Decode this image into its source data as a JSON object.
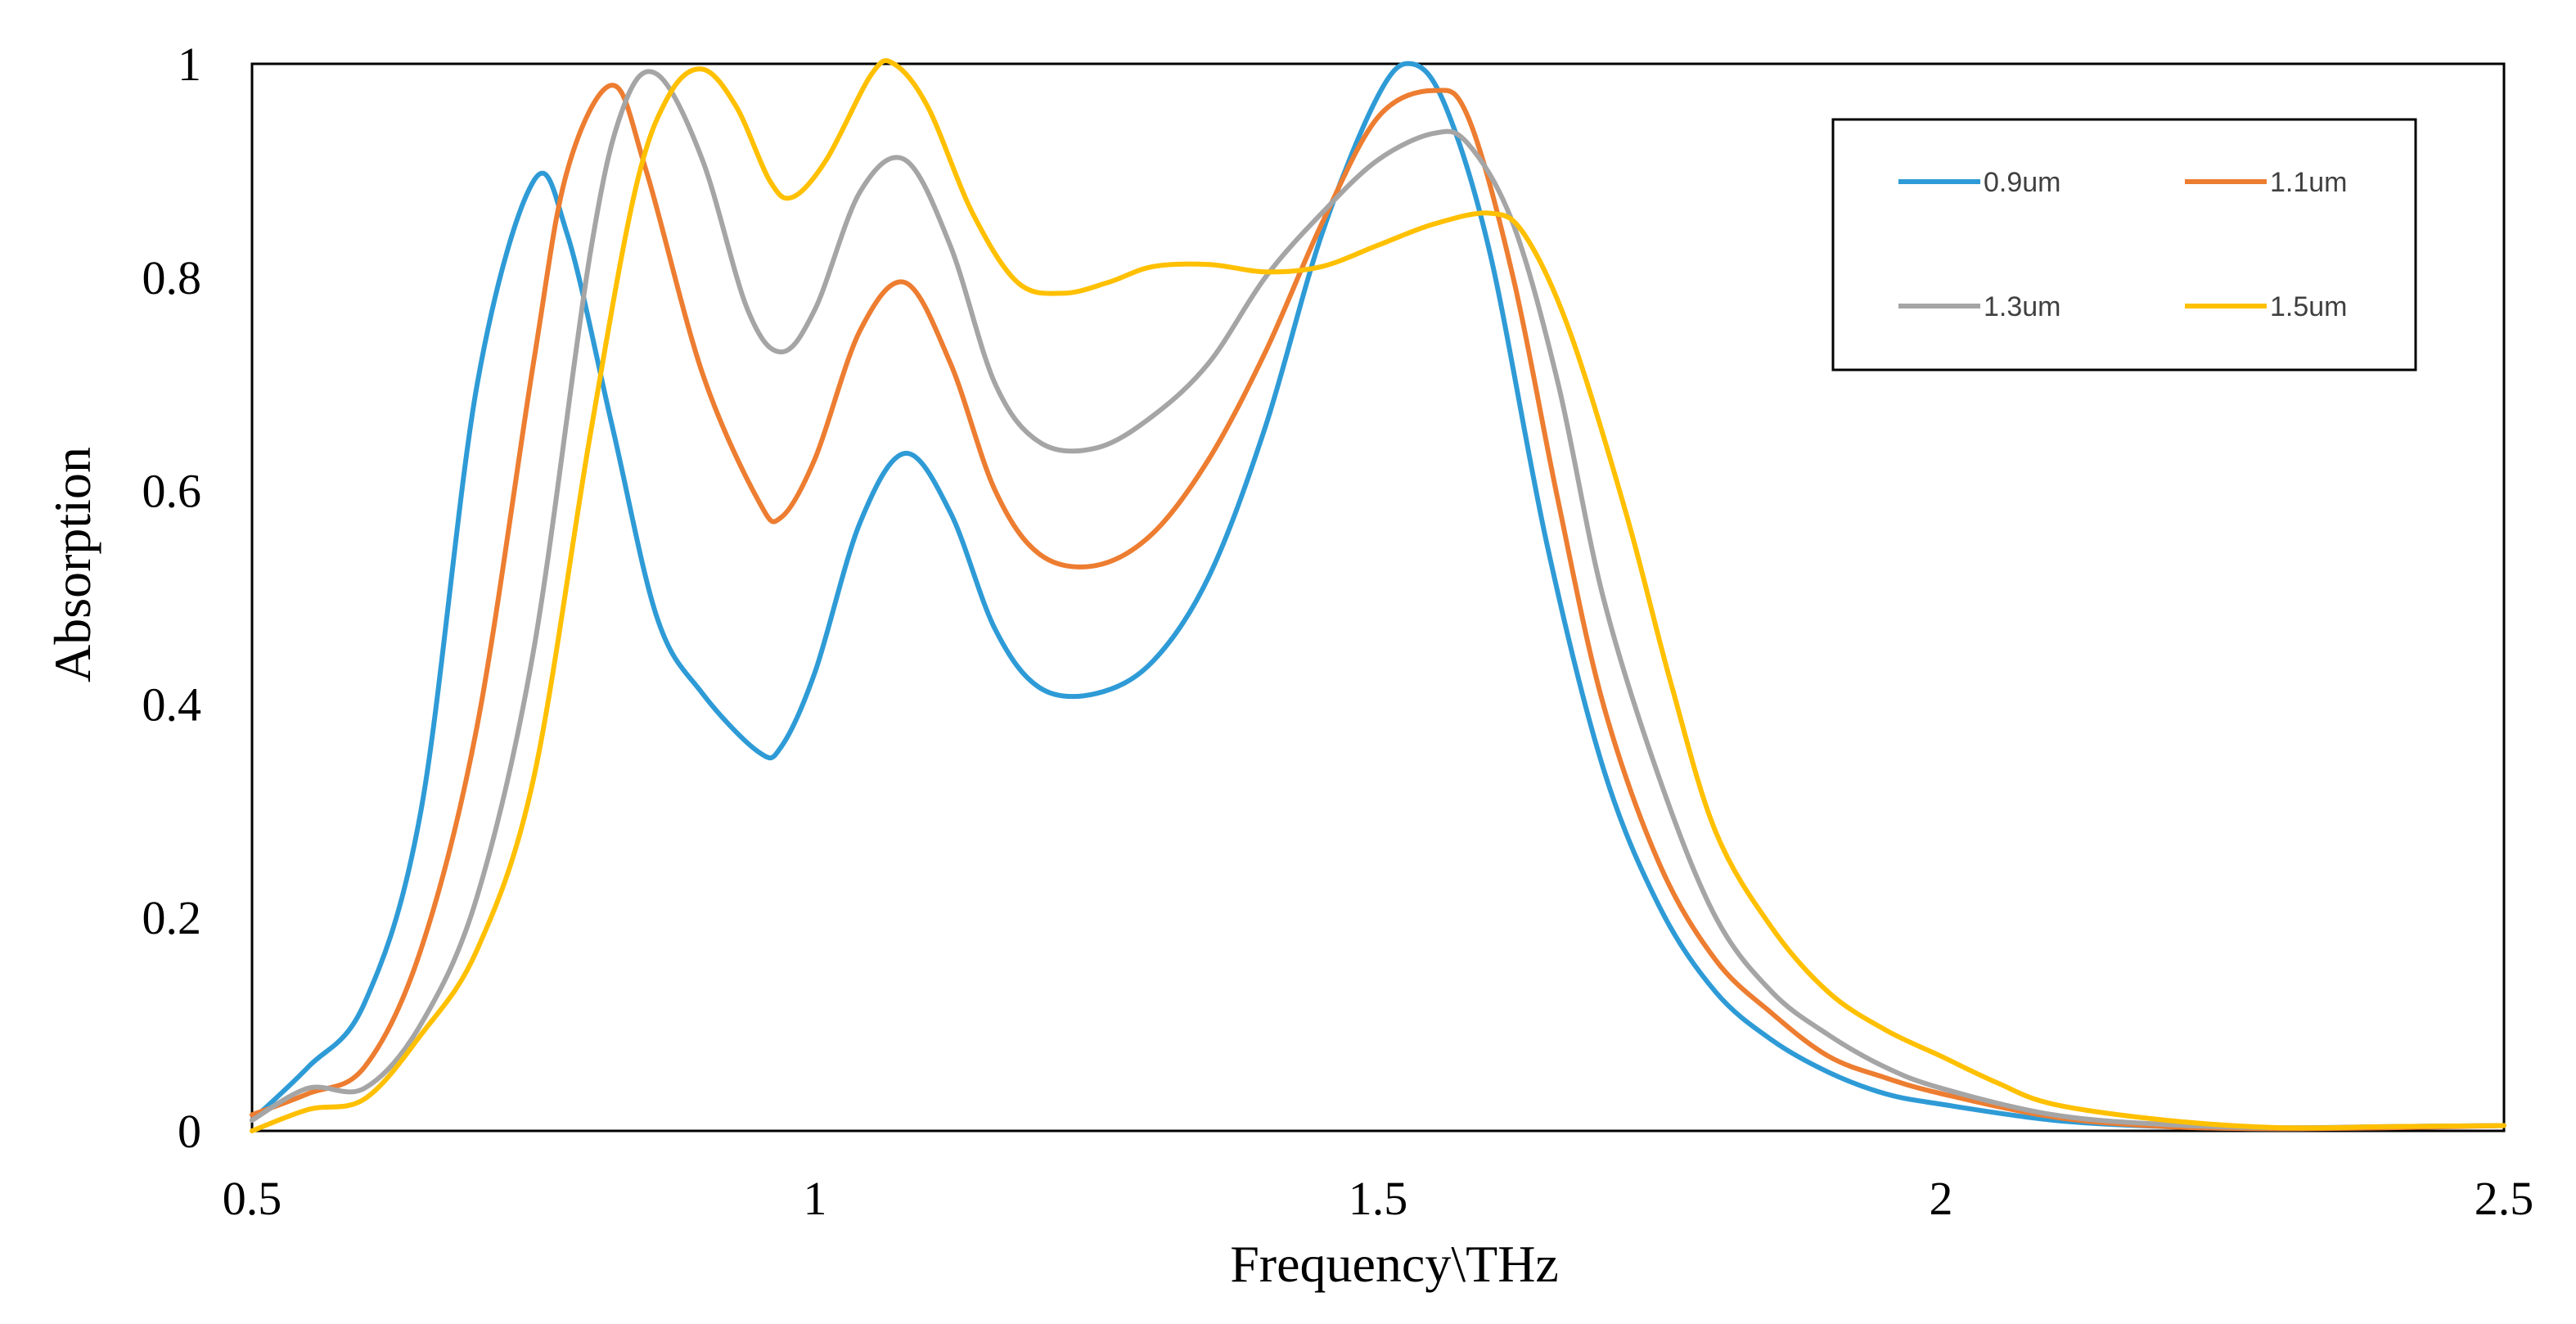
{
  "chart_data": {
    "type": "line",
    "title": "",
    "xlabel": "Frequency\\THz",
    "ylabel": "Absorption",
    "xlim": [
      0.5,
      2.5
    ],
    "ylim": [
      0,
      1
    ],
    "x_ticks": [
      "0.5",
      "1",
      "1.5",
      "2",
      "2.5"
    ],
    "y_ticks": [
      "0",
      "0.2",
      "0.4",
      "0.6",
      "0.8",
      "1"
    ],
    "grid": false,
    "legend_position": "top-right",
    "series": [
      {
        "name": "0.9um",
        "color": "#2E9BD6",
        "points": [
          [
            0.5,
            0.01
          ],
          [
            0.55,
            0.06
          ],
          [
            0.6,
            0.12
          ],
          [
            0.65,
            0.3
          ],
          [
            0.7,
            0.7
          ],
          [
            0.75,
            0.89
          ],
          [
            0.78,
            0.84
          ],
          [
            0.82,
            0.66
          ],
          [
            0.86,
            0.48
          ],
          [
            0.9,
            0.41
          ],
          [
            0.95,
            0.355
          ],
          [
            0.97,
            0.36
          ],
          [
            1.0,
            0.43
          ],
          [
            1.04,
            0.57
          ],
          [
            1.08,
            0.635
          ],
          [
            1.12,
            0.58
          ],
          [
            1.16,
            0.47
          ],
          [
            1.2,
            0.415
          ],
          [
            1.25,
            0.41
          ],
          [
            1.3,
            0.44
          ],
          [
            1.35,
            0.52
          ],
          [
            1.4,
            0.66
          ],
          [
            1.45,
            0.84
          ],
          [
            1.5,
            0.97
          ],
          [
            1.53,
            1.0
          ],
          [
            1.56,
            0.96
          ],
          [
            1.6,
            0.82
          ],
          [
            1.65,
            0.55
          ],
          [
            1.7,
            0.34
          ],
          [
            1.75,
            0.21
          ],
          [
            1.8,
            0.13
          ],
          [
            1.85,
            0.085
          ],
          [
            1.9,
            0.055
          ],
          [
            1.95,
            0.035
          ],
          [
            2.0,
            0.025
          ],
          [
            2.1,
            0.01
          ],
          [
            2.2,
            0.004
          ],
          [
            2.3,
            0.002
          ],
          [
            2.4,
            0.004
          ],
          [
            2.5,
            0.005
          ]
        ]
      },
      {
        "name": "1.1um",
        "color": "#ED7D31",
        "points": [
          [
            0.5,
            0.015
          ],
          [
            0.55,
            0.035
          ],
          [
            0.6,
            0.06
          ],
          [
            0.65,
            0.17
          ],
          [
            0.7,
            0.38
          ],
          [
            0.75,
            0.72
          ],
          [
            0.78,
            0.9
          ],
          [
            0.82,
            0.98
          ],
          [
            0.85,
            0.9
          ],
          [
            0.9,
            0.71
          ],
          [
            0.95,
            0.59
          ],
          [
            0.97,
            0.575
          ],
          [
            1.0,
            0.63
          ],
          [
            1.04,
            0.75
          ],
          [
            1.08,
            0.795
          ],
          [
            1.12,
            0.72
          ],
          [
            1.16,
            0.6
          ],
          [
            1.2,
            0.54
          ],
          [
            1.25,
            0.53
          ],
          [
            1.3,
            0.56
          ],
          [
            1.35,
            0.63
          ],
          [
            1.4,
            0.73
          ],
          [
            1.45,
            0.85
          ],
          [
            1.5,
            0.95
          ],
          [
            1.55,
            0.975
          ],
          [
            1.58,
            0.95
          ],
          [
            1.62,
            0.8
          ],
          [
            1.66,
            0.59
          ],
          [
            1.7,
            0.4
          ],
          [
            1.75,
            0.25
          ],
          [
            1.8,
            0.16
          ],
          [
            1.85,
            0.11
          ],
          [
            1.9,
            0.07
          ],
          [
            1.95,
            0.05
          ],
          [
            2.0,
            0.035
          ],
          [
            2.1,
            0.013
          ],
          [
            2.2,
            0.004
          ],
          [
            2.3,
            0.002
          ],
          [
            2.4,
            0.003
          ],
          [
            2.5,
            0.005
          ]
        ]
      },
      {
        "name": "1.3um",
        "color": "#A5A5A5",
        "points": [
          [
            0.5,
            0.01
          ],
          [
            0.55,
            0.04
          ],
          [
            0.6,
            0.04
          ],
          [
            0.65,
            0.1
          ],
          [
            0.7,
            0.22
          ],
          [
            0.75,
            0.45
          ],
          [
            0.8,
            0.82
          ],
          [
            0.83,
            0.96
          ],
          [
            0.86,
            0.99
          ],
          [
            0.9,
            0.91
          ],
          [
            0.94,
            0.77
          ],
          [
            0.97,
            0.73
          ],
          [
            1.0,
            0.77
          ],
          [
            1.04,
            0.88
          ],
          [
            1.08,
            0.91
          ],
          [
            1.12,
            0.83
          ],
          [
            1.16,
            0.7
          ],
          [
            1.2,
            0.645
          ],
          [
            1.25,
            0.64
          ],
          [
            1.3,
            0.67
          ],
          [
            1.35,
            0.72
          ],
          [
            1.4,
            0.8
          ],
          [
            1.45,
            0.86
          ],
          [
            1.5,
            0.91
          ],
          [
            1.55,
            0.935
          ],
          [
            1.58,
            0.925
          ],
          [
            1.62,
            0.85
          ],
          [
            1.66,
            0.7
          ],
          [
            1.7,
            0.5
          ],
          [
            1.75,
            0.33
          ],
          [
            1.8,
            0.2
          ],
          [
            1.85,
            0.13
          ],
          [
            1.9,
            0.09
          ],
          [
            1.95,
            0.06
          ],
          [
            2.0,
            0.04
          ],
          [
            2.1,
            0.015
          ],
          [
            2.2,
            0.006
          ],
          [
            2.3,
            0.003
          ],
          [
            2.4,
            0.004
          ],
          [
            2.5,
            0.005
          ]
        ]
      },
      {
        "name": "1.5um",
        "color": "#FFC000",
        "points": [
          [
            0.5,
            0.0
          ],
          [
            0.55,
            0.02
          ],
          [
            0.6,
            0.03
          ],
          [
            0.65,
            0.09
          ],
          [
            0.7,
            0.17
          ],
          [
            0.75,
            0.33
          ],
          [
            0.8,
            0.65
          ],
          [
            0.84,
            0.88
          ],
          [
            0.87,
            0.97
          ],
          [
            0.9,
            0.995
          ],
          [
            0.93,
            0.96
          ],
          [
            0.96,
            0.89
          ],
          [
            0.98,
            0.875
          ],
          [
            1.01,
            0.91
          ],
          [
            1.05,
            0.99
          ],
          [
            1.07,
            1.0
          ],
          [
            1.1,
            0.96
          ],
          [
            1.14,
            0.86
          ],
          [
            1.18,
            0.795
          ],
          [
            1.22,
            0.785
          ],
          [
            1.26,
            0.795
          ],
          [
            1.3,
            0.81
          ],
          [
            1.35,
            0.812
          ],
          [
            1.4,
            0.805
          ],
          [
            1.45,
            0.81
          ],
          [
            1.5,
            0.83
          ],
          [
            1.55,
            0.85
          ],
          [
            1.6,
            0.86
          ],
          [
            1.63,
            0.84
          ],
          [
            1.67,
            0.75
          ],
          [
            1.72,
            0.58
          ],
          [
            1.76,
            0.42
          ],
          [
            1.8,
            0.28
          ],
          [
            1.85,
            0.19
          ],
          [
            1.9,
            0.13
          ],
          [
            1.95,
            0.095
          ],
          [
            2.0,
            0.07
          ],
          [
            2.05,
            0.045
          ],
          [
            2.1,
            0.025
          ],
          [
            2.2,
            0.01
          ],
          [
            2.3,
            0.003
          ],
          [
            2.4,
            0.004
          ],
          [
            2.5,
            0.005
          ]
        ]
      }
    ]
  }
}
